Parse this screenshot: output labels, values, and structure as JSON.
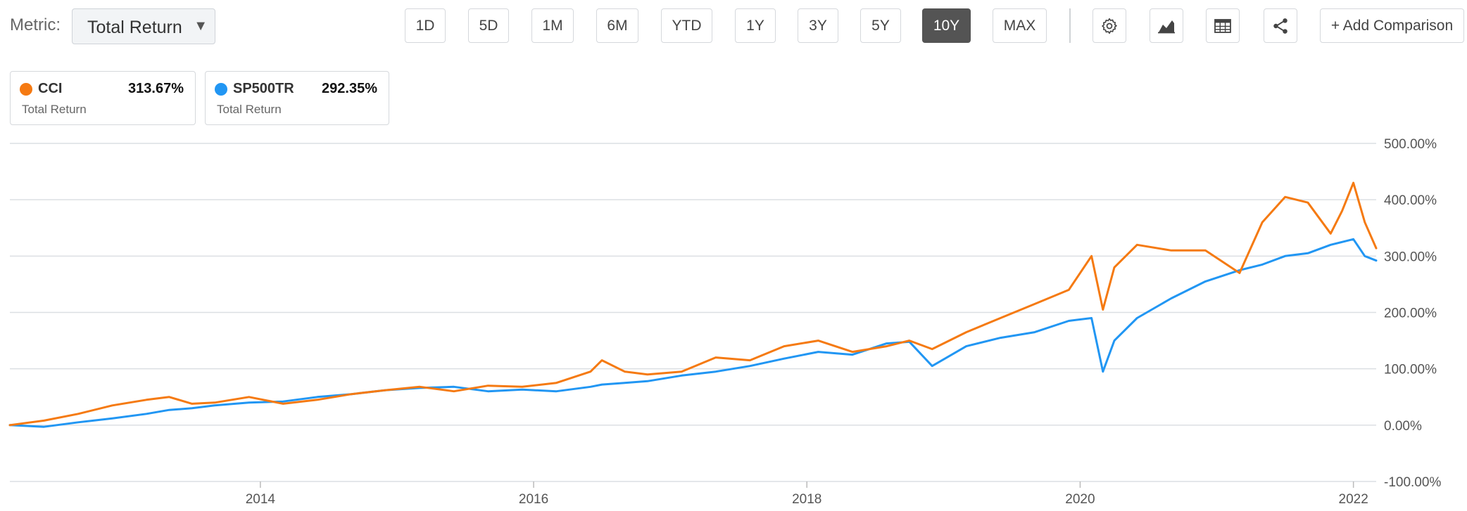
{
  "toolbar": {
    "metric_label": "Metric:",
    "metric_value": "Total Return",
    "caret": "▼",
    "ranges": [
      "1D",
      "5D",
      "1M",
      "6M",
      "YTD",
      "1Y",
      "3Y",
      "5Y",
      "10Y",
      "MAX"
    ],
    "active_range": "10Y",
    "icons": [
      "gear-icon",
      "area-chart-icon",
      "table-icon",
      "share-icon"
    ],
    "add_comparison": "+ Add Comparison"
  },
  "legend": [
    {
      "ticker": "CCI",
      "value": "313.67%",
      "metric": "Total Return",
      "color": "#f57a12"
    },
    {
      "ticker": "SP500TR",
      "value": "292.35%",
      "metric": "Total Return",
      "color": "#2196f3"
    }
  ],
  "chart_data": {
    "type": "line",
    "y_unit": "%",
    "ylim": [
      -100,
      500
    ],
    "yticks": [
      "500.00%",
      "400.00%",
      "300.00%",
      "200.00%",
      "100.00%",
      "0.00%",
      "-100.00%"
    ],
    "xticks": [
      "2014",
      "2016",
      "2018",
      "2020",
      "2022"
    ],
    "x_range": [
      "2012-03",
      "2022-03"
    ],
    "grid": true,
    "series": [
      {
        "name": "CCI",
        "color": "#f57a12",
        "x": [
          "2012-03",
          "2012-06",
          "2012-09",
          "2012-12",
          "2013-03",
          "2013-05",
          "2013-07",
          "2013-09",
          "2013-12",
          "2014-03",
          "2014-06",
          "2014-09",
          "2014-12",
          "2015-03",
          "2015-06",
          "2015-09",
          "2015-12",
          "2016-03",
          "2016-06",
          "2016-07",
          "2016-09",
          "2016-11",
          "2017-02",
          "2017-05",
          "2017-08",
          "2017-11",
          "2018-02",
          "2018-05",
          "2018-08",
          "2018-10",
          "2018-12",
          "2019-03",
          "2019-06",
          "2019-09",
          "2019-12",
          "2020-02",
          "2020-03",
          "2020-04",
          "2020-06",
          "2020-09",
          "2020-12",
          "2021-03",
          "2021-05",
          "2021-07",
          "2021-09",
          "2021-11",
          "2021-12",
          "2022-01",
          "2022-02",
          "2022-03"
        ],
        "values": [
          0,
          8,
          20,
          35,
          45,
          50,
          38,
          40,
          50,
          38,
          45,
          55,
          62,
          68,
          60,
          70,
          68,
          75,
          95,
          115,
          95,
          90,
          95,
          120,
          115,
          140,
          150,
          130,
          140,
          150,
          135,
          165,
          190,
          215,
          240,
          300,
          205,
          280,
          320,
          310,
          310,
          270,
          360,
          405,
          395,
          340,
          380,
          430,
          360,
          314
        ]
      },
      {
        "name": "SP500TR",
        "color": "#2196f3",
        "x": [
          "2012-03",
          "2012-06",
          "2012-09",
          "2012-12",
          "2013-03",
          "2013-05",
          "2013-07",
          "2013-09",
          "2013-12",
          "2014-03",
          "2014-06",
          "2014-09",
          "2014-12",
          "2015-03",
          "2015-06",
          "2015-09",
          "2015-12",
          "2016-03",
          "2016-06",
          "2016-07",
          "2016-09",
          "2016-11",
          "2017-02",
          "2017-05",
          "2017-08",
          "2017-11",
          "2018-02",
          "2018-05",
          "2018-08",
          "2018-10",
          "2018-12",
          "2019-03",
          "2019-06",
          "2019-09",
          "2019-12",
          "2020-02",
          "2020-03",
          "2020-04",
          "2020-06",
          "2020-09",
          "2020-12",
          "2021-03",
          "2021-05",
          "2021-07",
          "2021-09",
          "2021-11",
          "2021-12",
          "2022-01",
          "2022-02",
          "2022-03"
        ],
        "values": [
          0,
          -3,
          5,
          12,
          20,
          27,
          30,
          35,
          40,
          42,
          50,
          55,
          62,
          66,
          68,
          60,
          63,
          60,
          68,
          72,
          75,
          78,
          88,
          95,
          105,
          118,
          130,
          125,
          145,
          148,
          105,
          140,
          155,
          165,
          185,
          190,
          95,
          150,
          190,
          225,
          255,
          275,
          285,
          300,
          305,
          320,
          325,
          330,
          300,
          292
        ]
      }
    ]
  }
}
